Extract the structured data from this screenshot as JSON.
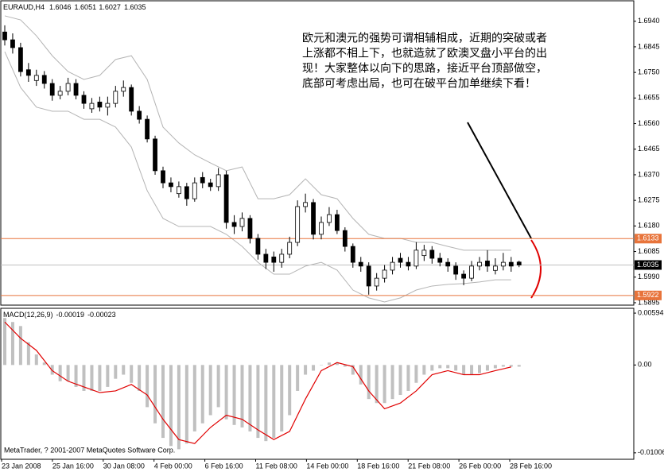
{
  "header": {
    "symbol": "EURAUD,H4"
  },
  "chart_data": [
    {
      "type": "candlestick",
      "candles": {
        "open": [
          1.69,
          1.6871,
          1.6842,
          1.676,
          1.672,
          1.6739,
          1.6709,
          1.6665,
          1.668,
          1.6709,
          1.6665,
          1.6615,
          1.664,
          1.6621,
          1.6635,
          1.668,
          1.6694,
          1.6606,
          1.6576,
          1.6503,
          1.6385,
          1.634,
          1.63,
          1.6326,
          1.6281,
          1.636,
          1.634,
          1.6326,
          1.637,
          1.6193,
          1.6178,
          1.6208,
          1.6134,
          1.6075,
          1.6065,
          1.6045,
          1.6075,
          1.6119,
          1.6252,
          1.6267,
          1.6149,
          1.6193,
          1.6222,
          1.6163,
          1.6104,
          1.6045,
          1.6031,
          1.5957,
          1.5986,
          1.6016,
          1.606,
          1.6045,
          1.6031,
          1.607,
          1.609,
          1.606,
          1.6045,
          1.6031,
          1.6001,
          1.5986,
          1.6031,
          1.605,
          1.6015,
          1.6031,
          1.6045,
          1.6046
        ],
        "high": [
          1.6925,
          1.6895,
          1.686,
          1.6785,
          1.676,
          1.6755,
          1.6725,
          1.67,
          1.673,
          1.6725,
          1.668,
          1.6655,
          1.666,
          1.666,
          1.67,
          1.672,
          1.6705,
          1.6625,
          1.659,
          1.6515,
          1.64,
          1.636,
          1.6345,
          1.634,
          1.636,
          1.638,
          1.6355,
          1.6395,
          1.6385,
          1.622,
          1.623,
          1.622,
          1.615,
          1.6095,
          1.6085,
          1.6095,
          1.614,
          1.6275,
          1.63,
          1.628,
          1.6215,
          1.625,
          1.624,
          1.6175,
          1.6115,
          1.6065,
          1.6045,
          1.6005,
          1.6035,
          1.6065,
          1.608,
          1.6065,
          1.612,
          1.611,
          1.6105,
          1.608,
          1.606,
          1.6045,
          1.6015,
          1.605,
          1.6065,
          1.609,
          1.606,
          1.608,
          1.6065,
          1.6051
        ],
        "low": [
          1.685,
          1.682,
          1.6735,
          1.6715,
          1.67,
          1.669,
          1.6645,
          1.665,
          1.6665,
          1.665,
          1.6615,
          1.66,
          1.6605,
          1.659,
          1.662,
          1.666,
          1.659,
          1.656,
          1.649,
          1.637,
          1.632,
          1.6305,
          1.6285,
          1.6255,
          1.627,
          1.632,
          1.631,
          1.631,
          1.617,
          1.615,
          1.616,
          1.6115,
          1.6055,
          1.602,
          1.601,
          1.6025,
          1.606,
          1.6105,
          1.623,
          1.613,
          1.613,
          1.618,
          1.615,
          1.6085,
          1.6025,
          1.601,
          1.5925,
          1.594,
          1.597,
          1.6,
          1.6025,
          1.6015,
          1.602,
          1.605,
          1.604,
          1.603,
          1.601,
          1.598,
          1.596,
          1.5975,
          1.6015,
          1.601,
          1.6,
          1.6015,
          1.601,
          1.6027
        ],
        "close": [
          1.6871,
          1.6842,
          1.6753,
          1.6739,
          1.6739,
          1.6709,
          1.6665,
          1.668,
          1.6709,
          1.6665,
          1.6635,
          1.6635,
          1.6621,
          1.6635,
          1.668,
          1.6694,
          1.6606,
          1.6576,
          1.6503,
          1.6385,
          1.634,
          1.6326,
          1.6326,
          1.6281,
          1.634,
          1.634,
          1.6326,
          1.637,
          1.6193,
          1.6178,
          1.6208,
          1.6134,
          1.6075,
          1.6045,
          1.6045,
          1.6075,
          1.6119,
          1.6252,
          1.6267,
          1.6149,
          1.6193,
          1.6222,
          1.6163,
          1.6104,
          1.6045,
          1.6031,
          1.5957,
          1.5986,
          1.6016,
          1.6045,
          1.6045,
          1.6031,
          1.609,
          1.609,
          1.606,
          1.6045,
          1.6031,
          1.6001,
          1.5986,
          1.6031,
          1.6045,
          1.6031,
          1.6031,
          1.6045,
          1.6031,
          1.6035
        ]
      },
      "bands": {
        "upper": [
          1.696,
          1.6945,
          1.6886,
          1.6812,
          1.6753,
          1.6724,
          1.6739,
          1.6798,
          1.6812,
          1.6724,
          1.6547,
          1.6488,
          1.6444,
          1.6414,
          1.6385,
          1.6399,
          1.6281,
          1.6281,
          1.6296,
          1.6355,
          1.6296,
          1.6281,
          1.6208,
          1.6149,
          1.6134,
          1.6134,
          1.6119,
          1.6119,
          1.6104,
          1.609,
          1.609,
          1.609,
          1.609
        ],
        "lower": [
          1.6827,
          1.6694,
          1.6621,
          1.6606,
          1.6606,
          1.6576,
          1.6576,
          1.6547,
          1.6473,
          1.6311,
          1.6208,
          1.6178,
          1.6178,
          1.6178,
          1.6149,
          1.6104,
          1.6045,
          1.6001,
          1.6001,
          1.6031,
          1.6045,
          1.6016,
          1.5942,
          1.5913,
          1.5898,
          1.5913,
          1.5942,
          1.5957,
          1.5963,
          1.5966,
          1.5972,
          1.598,
          1.598
        ],
        "color": "#b4b4b4"
      },
      "ylim": [
        1.5889,
        1.701
      ],
      "yticks": [
        {
          "value": 1.694,
          "label": "1.6940"
        },
        1.6845,
        {
          "value": 1.675,
          "label": "1.6750"
        },
        1.6655,
        {
          "value": 1.656,
          "label": "1.6560"
        },
        1.6465,
        {
          "value": 1.637,
          "label": "1.6370"
        },
        1.6275,
        {
          "value": 1.618,
          "label": "1.6180"
        },
        1.6085,
        {
          "value": 1.599,
          "label": "1.5990"
        },
        1.5895
      ],
      "levels": [
        1.6133,
        1.5922
      ],
      "level_color": "#e8743b",
      "x_labels": [
        "23 Jan 2008",
        "25 Jan 16:00",
        "30 Jan 08:00",
        "4 Feb 00:00",
        "6 Feb 16:00",
        "11 Feb 08:00",
        "14 Feb 00:00",
        "18 Feb 16:00",
        "21 Feb 08:00",
        "26 Feb 00:00",
        "28 Feb 16:00"
      ],
      "annotation": [
        "欧元和澳元的强势可谓相辅相成，近期的突破或者",
        "上涨都不相上下，也就造就了欧澳叉盘小平台的出",
        "现！大家整体以向下的思路，接近平台顶部做空，",
        "底部可考虑出局，也可在破平台加单继续下看！"
      ]
    },
    {
      "type": "macd",
      "title": "MACD(12,26,9)",
      "histogram": [
        0.00538,
        0.00492,
        0.00446,
        0.0026,
        0.00121,
        0.00028,
        -0.00111,
        -0.00186,
        -0.00186,
        -0.00251,
        -0.00297,
        -0.00297,
        -0.00297,
        -0.00251,
        -0.00158,
        -0.00111,
        -0.00204,
        -0.00297,
        -0.00483,
        -0.00668,
        -0.00835,
        -0.00928,
        -0.00965,
        -0.009,
        -0.00761,
        -0.00668,
        -0.00575,
        -0.00483,
        -0.00622,
        -0.00687,
        -0.00715,
        -0.00761,
        -0.00835,
        -0.00872,
        -0.00835,
        -0.00761,
        -0.00575,
        -0.00297,
        -0.00111,
        -0.00065,
        0,
        0.00028,
        0.00028,
        -0.00019,
        -0.00111,
        -0.00223,
        -0.0039,
        -0.00436,
        -0.00436,
        -0.0039,
        -0.00343,
        -0.00297,
        -0.00204,
        -0.00111,
        -0.00065,
        -0.00037,
        -0.00037,
        -0.00065,
        -0.00111,
        -0.00111,
        -0.00093,
        -0.00065,
        -0.00037,
        -0.00019,
        -0.00019,
        -0.00019
      ],
      "histogram_color": "#c0c0c0",
      "signal": [
        0.00492,
        0.00306,
        0.00167,
        -0.00065,
        -0.00186,
        -0.00251,
        -0.00316,
        -0.00297,
        -0.00223,
        -0.00343,
        -0.00622,
        -0.00854,
        -0.009,
        -0.00715,
        -0.00575,
        -0.00622,
        -0.00743,
        -0.00854,
        -0.00761,
        -0.0039,
        -0.00065,
        0.00028,
        -0.00019,
        -0.00297,
        -0.00501,
        -0.00436,
        -0.00297,
        -0.00111,
        -0.00065,
        -0.00111,
        -0.00111,
        -0.00065,
        -0.00023
      ],
      "signal_color": "#e00000",
      "ylim": [
        -0.0108,
        0.0064
      ],
      "yticks": [
        0.00594,
        {
          "value": 0,
          "label": "0.00"
        },
        -0.01006
      ]
    }
  ],
  "footer": "MetaTrader, ? 2001-2007 MetaQuotes Software Corp."
}
